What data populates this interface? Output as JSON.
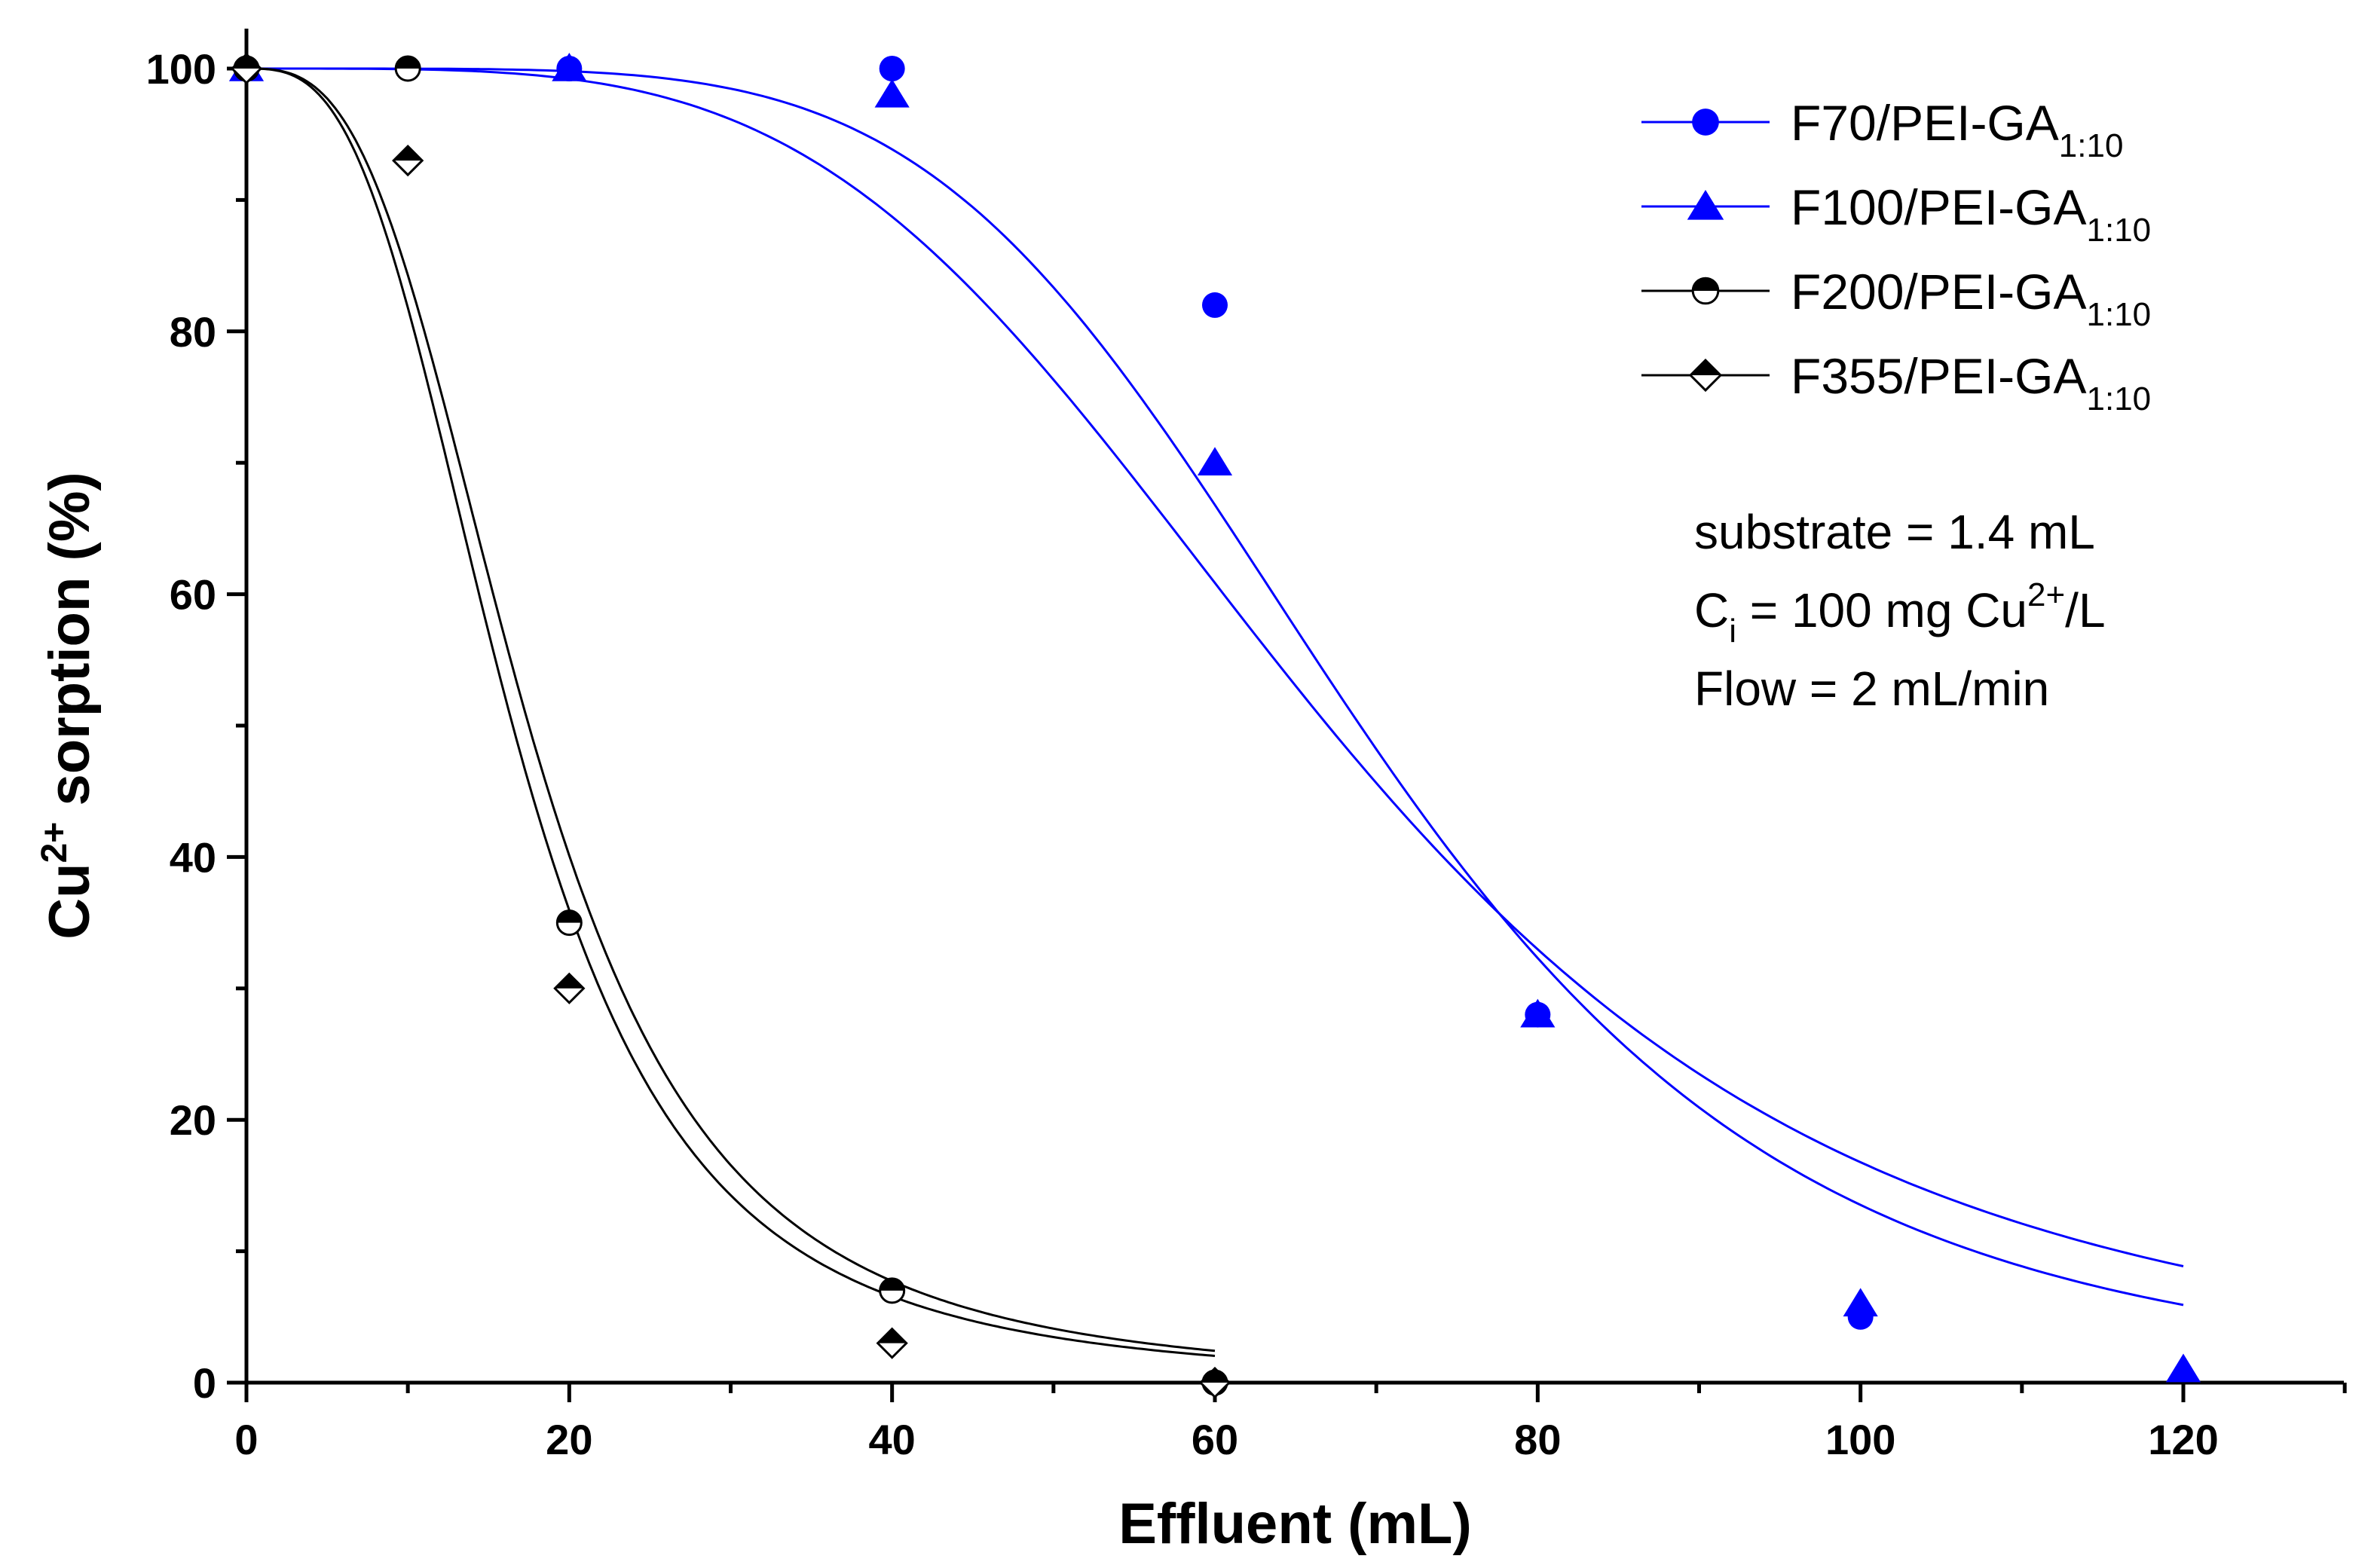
{
  "chart_data": {
    "type": "scatter",
    "title": "",
    "xlabel": "Effluent (mL)",
    "ylabel": {
      "base": "Cu",
      "sup": "2+",
      "rest": " sorption (%)"
    },
    "xlim": [
      0,
      130
    ],
    "ylim": [
      0,
      103
    ],
    "x_ticks": [
      0,
      20,
      40,
      60,
      80,
      100,
      120
    ],
    "y_ticks": [
      0,
      20,
      40,
      60,
      80,
      100
    ],
    "x_minor_step": 10,
    "y_minor_step": 10,
    "grid": false,
    "legend_position": "top-right",
    "series": [
      {
        "name": "F70/PEI-GA1:10",
        "label_main": "F70/PEI-GA",
        "label_sub": "1:10",
        "color": "#0000ff",
        "marker": "circle",
        "x": [
          0,
          20,
          40,
          60,
          80,
          100
        ],
        "values": [
          100,
          100,
          100,
          82,
          28,
          5
        ],
        "fit": {
          "x0": 69,
          "p": 5.0,
          "xmax": 120
        }
      },
      {
        "name": "F100/PEI-GA1:10",
        "label_main": "F100/PEI-GA",
        "label_sub": "1:10",
        "color": "#0000ff",
        "marker": "triangle",
        "x": [
          0,
          20,
          40,
          60,
          80,
          100,
          120
        ],
        "values": [
          100,
          100,
          98,
          70,
          28,
          6,
          1
        ],
        "fit": {
          "x0": 67,
          "p": 4.0,
          "xmax": 120
        }
      },
      {
        "name": "F200/PEI-GA1:10",
        "label_main": "F200/PEI-GA",
        "label_sub": "1:10",
        "color": "#000000",
        "marker": "half-circle",
        "x": [
          0,
          10,
          20,
          40,
          60
        ],
        "values": [
          100,
          100,
          35,
          7,
          0
        ],
        "fit": {
          "x0": 17.5,
          "p": 3.0,
          "xmax": 60
        }
      },
      {
        "name": "F355/PEI-GA1:10",
        "label_main": "F355/PEI-GA",
        "label_sub": "1:10",
        "color": "#000000",
        "marker": "half-diamond",
        "x": [
          0,
          10,
          20,
          40,
          60
        ],
        "values": [
          100,
          93,
          30,
          3,
          0
        ],
        "fit": {
          "x0": 16.5,
          "p": 3.0,
          "xmax": 60
        }
      }
    ],
    "annotations": [
      {
        "parts": [
          {
            "t": "substrate = 1.4 mL"
          }
        ]
      },
      {
        "parts": [
          {
            "t": "C"
          },
          {
            "t": "i",
            "style": "sub"
          },
          {
            "t": " = 100 mg Cu"
          },
          {
            "t": "2+",
            "style": "sup"
          },
          {
            "t": "/L"
          }
        ]
      },
      {
        "parts": [
          {
            "t": "Flow = 2 mL/min"
          }
        ]
      }
    ]
  }
}
